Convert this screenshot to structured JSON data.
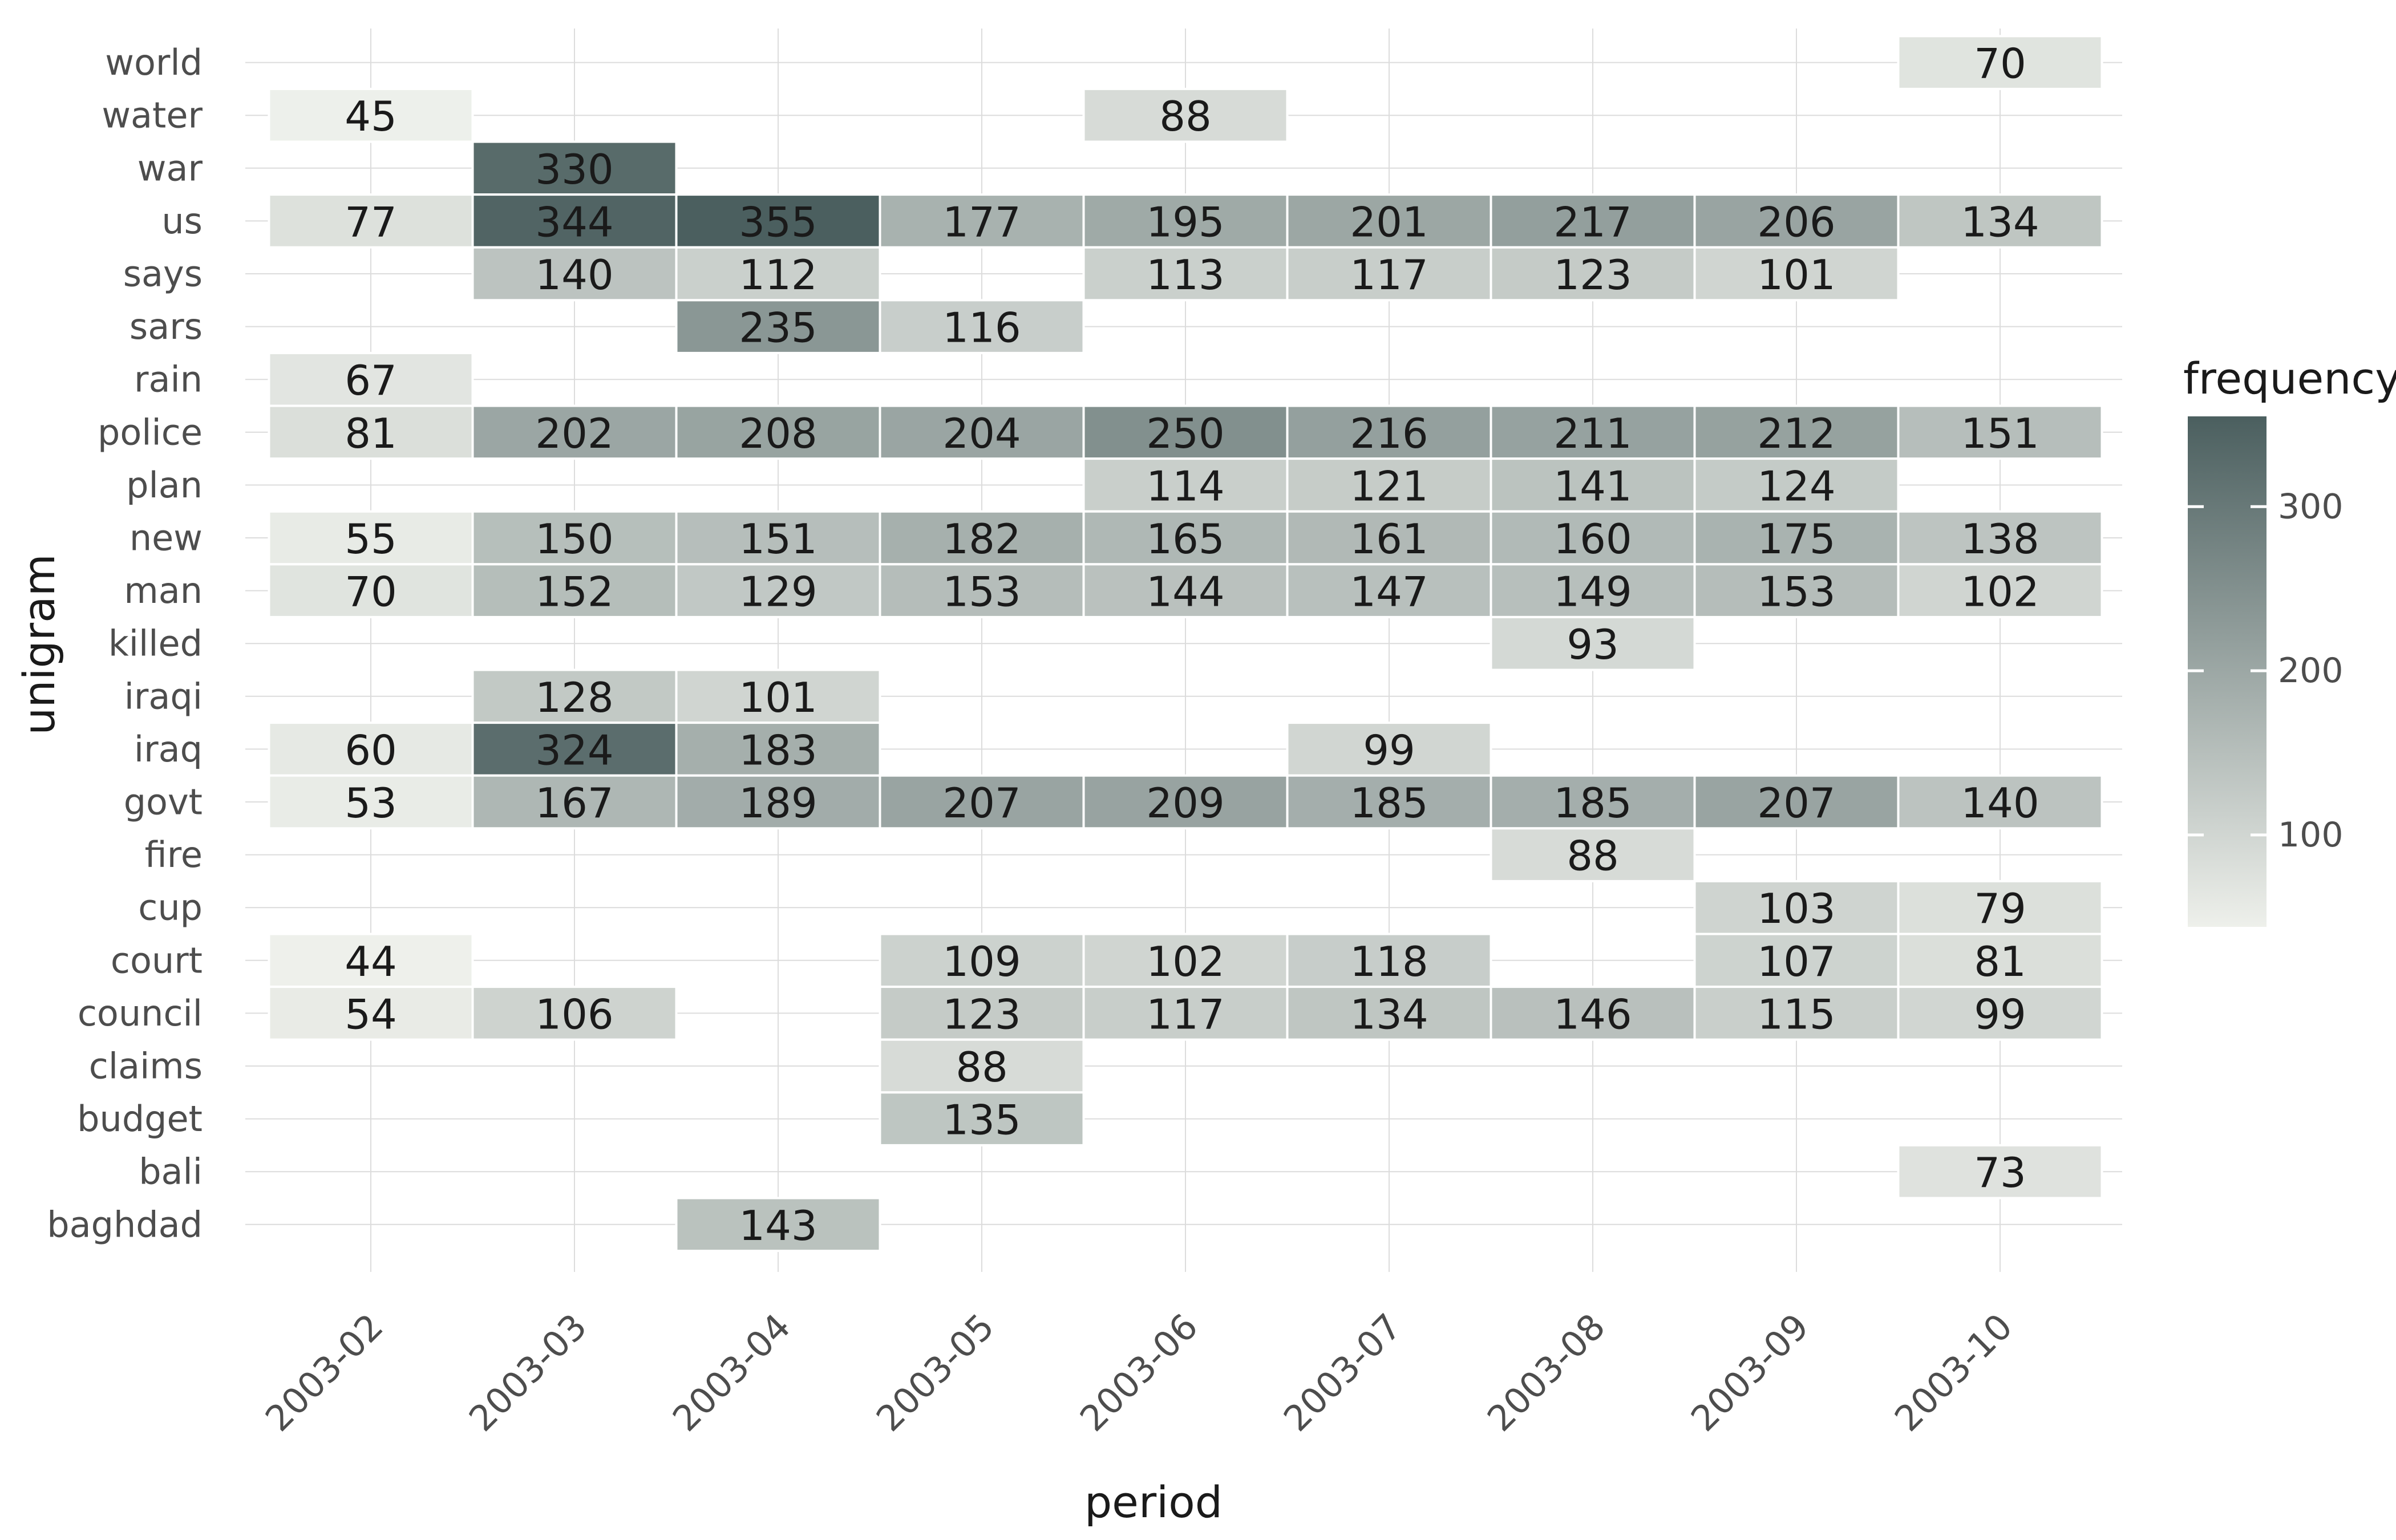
{
  "chart_data": {
    "type": "heatmap",
    "title": "",
    "xlabel": "period",
    "ylabel": "unigram",
    "x": [
      "2003-02",
      "2003-03",
      "2003-04",
      "2003-05",
      "2003-06",
      "2003-07",
      "2003-08",
      "2003-09",
      "2003-10"
    ],
    "y": [
      "world",
      "water",
      "war",
      "us",
      "says",
      "sars",
      "rain",
      "police",
      "plan",
      "new",
      "man",
      "killed",
      "iraqi",
      "iraq",
      "govt",
      "fire",
      "cup",
      "court",
      "council",
      "claims",
      "budget",
      "bali",
      "baghdad"
    ],
    "values": [
      [
        null,
        null,
        null,
        null,
        null,
        null,
        null,
        null,
        70
      ],
      [
        45,
        null,
        null,
        null,
        88,
        null,
        null,
        null,
        null
      ],
      [
        null,
        330,
        null,
        null,
        null,
        null,
        null,
        null,
        null
      ],
      [
        77,
        344,
        355,
        177,
        195,
        201,
        217,
        206,
        134
      ],
      [
        null,
        140,
        112,
        null,
        113,
        117,
        123,
        101,
        null
      ],
      [
        null,
        null,
        235,
        116,
        null,
        null,
        null,
        null,
        null
      ],
      [
        67,
        null,
        null,
        null,
        null,
        null,
        null,
        null,
        null
      ],
      [
        81,
        202,
        208,
        204,
        250,
        216,
        211,
        212,
        151
      ],
      [
        null,
        null,
        null,
        null,
        114,
        121,
        141,
        124,
        null
      ],
      [
        55,
        150,
        151,
        182,
        165,
        161,
        160,
        175,
        138
      ],
      [
        70,
        152,
        129,
        153,
        144,
        147,
        149,
        153,
        102
      ],
      [
        null,
        null,
        null,
        null,
        null,
        null,
        93,
        null,
        null
      ],
      [
        null,
        128,
        101,
        null,
        null,
        null,
        null,
        null,
        null
      ],
      [
        60,
        324,
        183,
        null,
        null,
        99,
        null,
        null,
        null
      ],
      [
        53,
        167,
        189,
        207,
        209,
        185,
        185,
        207,
        140
      ],
      [
        null,
        null,
        null,
        null,
        null,
        null,
        88,
        null,
        null
      ],
      [
        null,
        null,
        null,
        null,
        null,
        null,
        null,
        103,
        79
      ],
      [
        44,
        null,
        null,
        109,
        102,
        118,
        null,
        107,
        81
      ],
      [
        54,
        106,
        null,
        123,
        117,
        134,
        146,
        115,
        99
      ],
      [
        null,
        null,
        null,
        88,
        null,
        null,
        null,
        null,
        null
      ],
      [
        null,
        null,
        null,
        135,
        null,
        null,
        null,
        null,
        null
      ],
      [
        null,
        null,
        null,
        null,
        null,
        null,
        null,
        null,
        73
      ],
      [
        null,
        null,
        143,
        null,
        null,
        null,
        null,
        null,
        null
      ]
    ],
    "legend": {
      "title": "frequency",
      "placement": "right",
      "ticks": [
        100,
        200,
        300
      ],
      "range": [
        44,
        355
      ]
    },
    "color_scale": {
      "low": "#eef0eb",
      "high": "#4b5f5f"
    },
    "grid": true
  }
}
